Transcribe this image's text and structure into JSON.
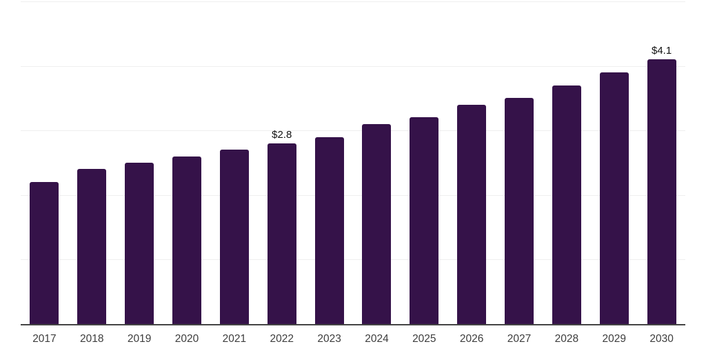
{
  "chart_data": {
    "type": "bar",
    "title": "",
    "xlabel": "",
    "ylabel": "",
    "categories": [
      "2017",
      "2018",
      "2019",
      "2020",
      "2021",
      "2022",
      "2023",
      "2024",
      "2025",
      "2026",
      "2027",
      "2028",
      "2029",
      "2030"
    ],
    "values": [
      2.2,
      2.4,
      2.5,
      2.6,
      2.7,
      2.8,
      2.9,
      3.1,
      3.2,
      3.4,
      3.5,
      3.7,
      3.9,
      4.1
    ],
    "bar_labels": [
      "",
      "",
      "",
      "",
      "",
      "$2.8",
      "",
      "",
      "",
      "",
      "",
      "",
      "",
      "$4.1"
    ],
    "ylim": [
      0,
      5
    ],
    "gridline_values": [
      1,
      2,
      3,
      4,
      5
    ],
    "grid": "horizontal",
    "legend_position": "none",
    "colors": {
      "bar": "#351249",
      "grid": "#efefef",
      "axis": "#444444",
      "tick_label": "#3d3d3d",
      "value_label": "#111111",
      "background": "#ffffff"
    }
  }
}
